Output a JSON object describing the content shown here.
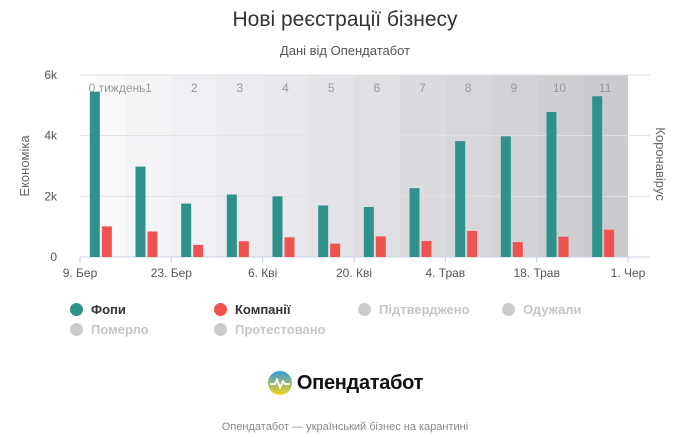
{
  "title": "Нові реєстрації бізнесу",
  "subtitle": "Дані від Опендатабот",
  "chart_data": {
    "type": "bar",
    "title": "Нові реєстрації бізнесу",
    "subtitle": "Дані від Опендатабот",
    "ylabel": "Економіка",
    "ylabel_right": "Коронавірус",
    "ylim": [
      0,
      6000
    ],
    "yticks": [
      0,
      2000,
      4000,
      6000
    ],
    "ytick_labels": [
      "0",
      "2k",
      "4k",
      "6k"
    ],
    "week_labels": [
      "0 тиждень",
      "1",
      "2",
      "3",
      "4",
      "5",
      "6",
      "7",
      "8",
      "9",
      "10",
      "11"
    ],
    "xtick_labels": [
      "9. Бер",
      "23. Бер",
      "6. Кві",
      "20. Кві",
      "4. Трав",
      "18. Трав",
      "1. Чер"
    ],
    "series": [
      {
        "name": "Фопи",
        "color": "#2e918a",
        "values": [
          5450,
          2980,
          1760,
          2060,
          2000,
          1700,
          1650,
          2270,
          3820,
          3980,
          4780,
          5300
        ]
      },
      {
        "name": "Компанії",
        "color": "#ef5350",
        "values": [
          1010,
          840,
          400,
          520,
          650,
          440,
          680,
          530,
          860,
          490,
          670,
          900
        ]
      }
    ],
    "legend_inactive": [
      "Підтверджено",
      "Одужали",
      "Померло",
      "Протестовано"
    ],
    "legend_position": "bottom"
  },
  "branding": {
    "logo_text": "Опендатабот"
  },
  "footer": "Опендатабот — український бізнес на карантині"
}
